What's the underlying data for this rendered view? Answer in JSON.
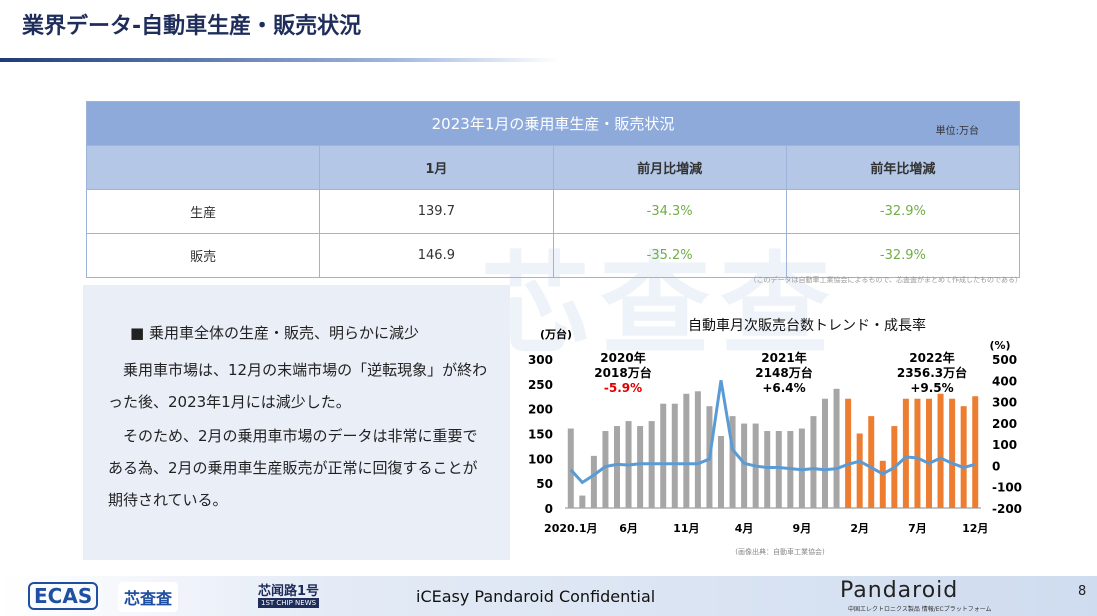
{
  "header": {
    "title": "業界データ-自動車生産・販売状況"
  },
  "table": {
    "title": "2023年1月の乗用車生産・販売状況",
    "unit": "単位:万台",
    "columns": [
      "1月",
      "前月比増減",
      "前年比増減"
    ],
    "rows": [
      {
        "label": "生産",
        "values": [
          "139.7",
          "-34.3%",
          "-32.9%"
        ]
      },
      {
        "label": "販売",
        "values": [
          "146.9",
          "-35.2%",
          "-32.9%"
        ]
      }
    ],
    "note": "（このデータは自動車工業協会によるもので、芯査査がまとめて作成したものである）"
  },
  "text": {
    "heading": "■ 乗用車全体の生産・販売、明らかに減少",
    "paragraphs": [
      "乗用車市場は、12月の末端市場の「逆転現象」が終わった後、2023年1月には減少した。",
      "そのため、2月の乗用車市場のデータは非常に重要である為、2月の乗用車生産販売が正常に回復することが期待されている。"
    ]
  },
  "watermark": "芯查查",
  "chart_data": {
    "type": "bar",
    "title": "自動車月次販売台数トレンド・成長率",
    "ylabel": "(万台)",
    "y2label": "(%)",
    "categories": [
      "2020.1月",
      null,
      null,
      null,
      null,
      "6月",
      null,
      null,
      null,
      null,
      "11月",
      null,
      null,
      null,
      null,
      "4月",
      null,
      null,
      null,
      null,
      "9月",
      null,
      null,
      null,
      null,
      "2月",
      null,
      null,
      null,
      null,
      "7月",
      null,
      null,
      null,
      null,
      "12月"
    ],
    "series": [
      {
        "type": "bar",
        "colors": [
          "#a6a6a6",
          "#a6a6a6",
          "#a6a6a6",
          "#a6a6a6",
          "#a6a6a6",
          "#a6a6a6",
          "#a6a6a6",
          "#a6a6a6",
          "#a6a6a6",
          "#a6a6a6",
          "#a6a6a6",
          "#a6a6a6",
          "#a6a6a6",
          "#a6a6a6",
          "#a6a6a6",
          "#a6a6a6",
          "#a6a6a6",
          "#a6a6a6",
          "#a6a6a6",
          "#a6a6a6",
          "#a6a6a6",
          "#a6a6a6",
          "#a6a6a6",
          "#a6a6a6",
          "#ed7d31",
          "#ed7d31",
          "#ed7d31",
          "#ed7d31",
          "#ed7d31",
          "#ed7d31",
          "#ed7d31",
          "#ed7d31",
          "#ed7d31",
          "#ed7d31",
          "#ed7d31",
          "#ed7d31"
        ],
        "values": [
          160,
          25,
          105,
          155,
          165,
          175,
          165,
          175,
          210,
          210,
          230,
          235,
          205,
          145,
          185,
          170,
          170,
          155,
          155,
          155,
          160,
          185,
          220,
          240,
          220,
          150,
          185,
          95,
          165,
          220,
          220,
          220,
          230,
          220,
          205,
          225
        ]
      },
      {
        "type": "line",
        "axis": "y2",
        "color": "#5b9bd5",
        "values": [
          -20,
          -80,
          -45,
          -5,
          5,
          2,
          8,
          8,
          8,
          8,
          8,
          8,
          30,
          400,
          75,
          10,
          -3,
          -10,
          -10,
          -15,
          -20,
          -15,
          -20,
          -15,
          5,
          20,
          -10,
          -40,
          -10,
          40,
          35,
          10,
          35,
          10,
          -10,
          5
        ]
      }
    ],
    "ylim": [
      0,
      300
    ],
    "yticks": [
      0,
      50,
      100,
      150,
      200,
      250,
      300
    ],
    "y2lim": [
      -200,
      500
    ],
    "y2ticks": [
      -200,
      -100,
      0,
      100,
      200,
      300,
      400,
      500
    ],
    "annotations": [
      {
        "year": "2020年",
        "total": "2018万台",
        "rate": "-5.9%",
        "rate_color": "#e00000"
      },
      {
        "year": "2021年",
        "total": "2148万台",
        "rate": "+6.4%",
        "rate_color": "#000000"
      },
      {
        "year": "2022年",
        "total": "2356.3万台",
        "rate": "+9.5%",
        "rate_color": "#000000"
      }
    ],
    "source": "(画像出典：自動車工業協会)"
  },
  "footer": {
    "logos": [
      "ECAS",
      "芯査査",
      "芯闻路1号",
      "1ST CHIP NEWS"
    ],
    "confidential": "iCEasy  Pandaroid Confidential",
    "brand": "Pandaroid",
    "brand_sub": "中国エレクトロニクス製品 情報/ECプラットフォーム",
    "page": "8"
  }
}
